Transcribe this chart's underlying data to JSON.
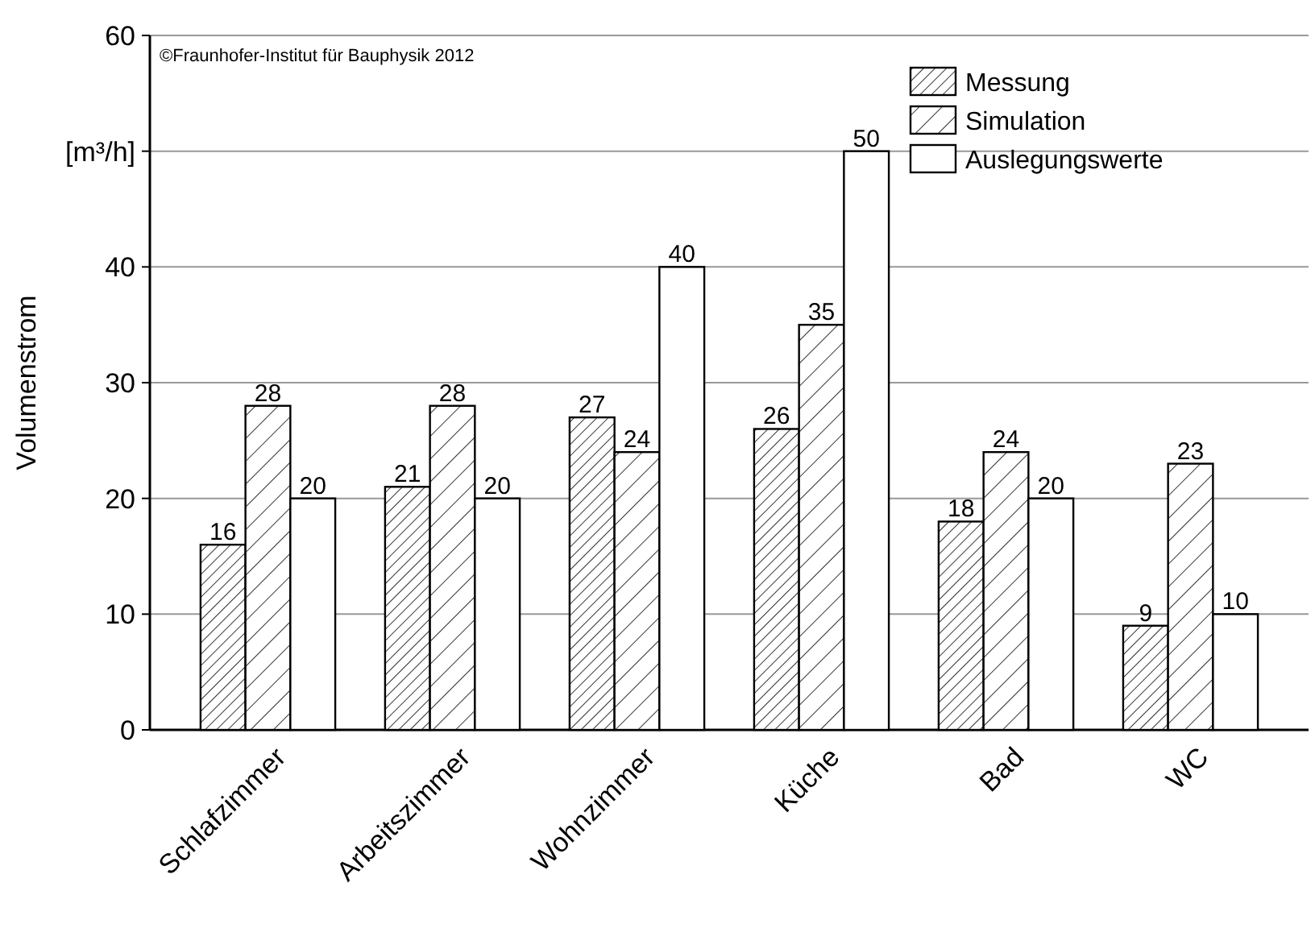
{
  "chart_data": {
    "type": "bar",
    "ylabel": "Volumenstrom",
    "categories": [
      "Schlafzimmer",
      "Arbeitszimmer",
      "Wohnzimmer",
      "Küche",
      "Bad",
      "WC"
    ],
    "series": [
      {
        "name": "Messung",
        "color": "#000000",
        "values": [
          16,
          21,
          27,
          26,
          18,
          9
        ]
      },
      {
        "name": "Simulation",
        "color": "#000000",
        "values": [
          28,
          28,
          24,
          35,
          24,
          23
        ]
      },
      {
        "name": "Auslegungswerte",
        "color": "#000000",
        "values": [
          20,
          20,
          40,
          50,
          20,
          10
        ]
      }
    ],
    "ylim": [
      0,
      60
    ],
    "yticks": [
      0,
      10,
      20,
      30,
      40,
      {
        "value": 50,
        "label": "[m³/h]"
      },
      60
    ],
    "grid": "y",
    "legend": "top right",
    "data_labels": true,
    "annotations": [
      "©Fraunhofer-Institut für Bauphysik 2012"
    ]
  }
}
